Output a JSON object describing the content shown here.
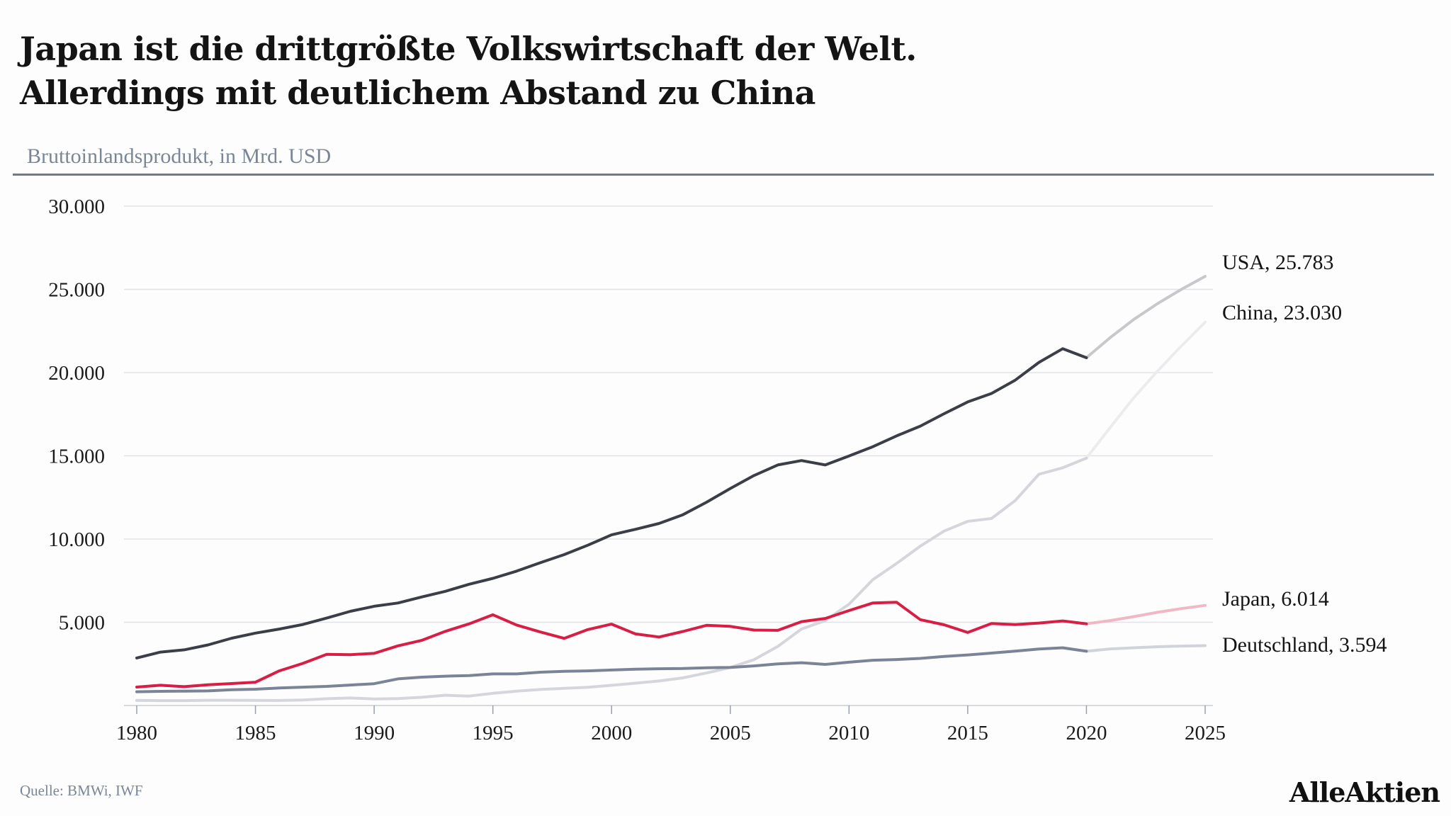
{
  "header": {
    "title_line1": "Japan ist die drittgrößte Volkswirtschaft der Welt.",
    "title_line2": "Allerdings mit deutlichem Abstand zu China",
    "subtitle": "Bruttoinlandsprodukt, in Mrd. USD"
  },
  "footer": {
    "source": "Quelle: BMWi, IWF",
    "brand": "AlleAktien"
  },
  "chart_data": {
    "type": "line",
    "ylim": [
      0,
      30000
    ],
    "yticks": [
      5000,
      10000,
      15000,
      20000,
      25000,
      30000
    ],
    "ytick_labels": [
      "5.000",
      "10.000",
      "15.000",
      "20.000",
      "25.000",
      "30.000"
    ],
    "xlim": [
      1980,
      2025
    ],
    "xticks": [
      1980,
      1985,
      1990,
      1995,
      2000,
      2005,
      2010,
      2015,
      2020,
      2025
    ],
    "forecast_from": 2020,
    "grid": true,
    "x": [
      1980,
      1981,
      1982,
      1983,
      1984,
      1985,
      1986,
      1987,
      1988,
      1989,
      1990,
      1991,
      1992,
      1993,
      1994,
      1995,
      1996,
      1997,
      1998,
      1999,
      2000,
      2001,
      2002,
      2003,
      2004,
      2005,
      2006,
      2007,
      2008,
      2009,
      2010,
      2011,
      2012,
      2013,
      2014,
      2015,
      2016,
      2017,
      2018,
      2019,
      2020,
      2021,
      2022,
      2023,
      2024,
      2025
    ],
    "series": [
      {
        "name": "USA",
        "end_label": "USA, 25.783",
        "color": "#3b3e47",
        "forecast_color": "#c8c8cc",
        "values": [
          2857,
          3207,
          3345,
          3638,
          4041,
          4347,
          4590,
          4870,
          5253,
          5658,
          5963,
          6158,
          6520,
          6859,
          7287,
          7640,
          8073,
          8578,
          9063,
          9631,
          10252,
          10582,
          10936,
          11458,
          12214,
          13037,
          13815,
          14452,
          14713,
          14449,
          14992,
          15543,
          16197,
          16785,
          17527,
          18238,
          18745,
          19543,
          20612,
          21433,
          20894,
          22100,
          23200,
          24150,
          25000,
          25783
        ]
      },
      {
        "name": "China",
        "end_label": "China, 23.030",
        "color": "#d4d6dc",
        "forecast_color": "#ececee",
        "values": [
          306,
          293,
          295,
          314,
          317,
          309,
          302,
          327,
          407,
          451,
          395,
          414,
          492,
          617,
          564,
          734,
          863,
          962,
          1029,
          1094,
          1211,
          1339,
          1471,
          1660,
          1955,
          2286,
          2752,
          3550,
          4594,
          5101,
          6087,
          7552,
          8532,
          9570,
          10476,
          11062,
          11233,
          12310,
          13895,
          14280,
          14860,
          16700,
          18500,
          20100,
          21600,
          23030
        ]
      },
      {
        "name": "Japan",
        "end_label": "Japan, 6.014",
        "color": "#d81e44",
        "forecast_color": "#f0b8c4",
        "values": [
          1105,
          1218,
          1134,
          1243,
          1318,
          1399,
          2079,
          2533,
          3072,
          3055,
          3133,
          3585,
          3909,
          4455,
          4908,
          5449,
          4834,
          4415,
          4033,
          4563,
          4888,
          4304,
          4116,
          4446,
          4815,
          4755,
          4530,
          4515,
          5038,
          5231,
          5700,
          6157,
          6203,
          5156,
          4850,
          4389,
          4927,
          4860,
          4955,
          5082,
          4907,
          5100,
          5340,
          5600,
          5820,
          6014
        ]
      },
      {
        "name": "Deutschland",
        "end_label": "Deutschland, 3.594",
        "color": "#7a8496",
        "forecast_color": "#d0d4da",
        "values": [
          826,
          853,
          862,
          878,
          950,
          980,
          1050,
          1100,
          1150,
          1230,
          1310,
          1600,
          1700,
          1760,
          1800,
          1900,
          1900,
          2000,
          2050,
          2080,
          2130,
          2180,
          2210,
          2220,
          2270,
          2290,
          2380,
          2500,
          2570,
          2470,
          2600,
          2720,
          2760,
          2830,
          2950,
          3040,
          3150,
          3270,
          3390,
          3470,
          3260,
          3400,
          3470,
          3530,
          3570,
          3594
        ]
      }
    ]
  }
}
